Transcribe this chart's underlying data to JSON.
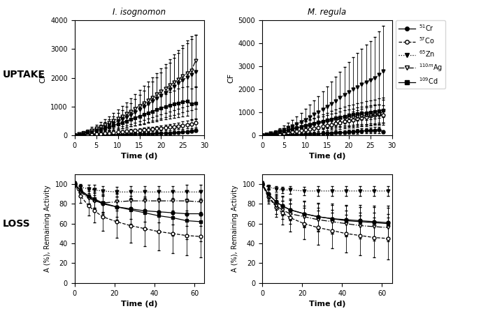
{
  "uptake_time": [
    0,
    1,
    2,
    3,
    4,
    5,
    6,
    7,
    8,
    9,
    10,
    11,
    12,
    13,
    14,
    15,
    16,
    17,
    18,
    19,
    20,
    21,
    22,
    23,
    24,
    25,
    26,
    27,
    28
  ],
  "iso_Cr_mean": [
    0,
    5,
    8,
    11,
    13,
    16,
    19,
    21,
    24,
    27,
    30,
    33,
    36,
    40,
    43,
    47,
    51,
    55,
    60,
    65,
    70,
    75,
    80,
    90,
    100,
    110,
    125,
    145,
    160
  ],
  "iso_Cr_sd": [
    0,
    2,
    3,
    4,
    5,
    6,
    7,
    8,
    9,
    10,
    11,
    12,
    13,
    14,
    15,
    16,
    17,
    18,
    20,
    22,
    24,
    26,
    28,
    30,
    33,
    36,
    40,
    45,
    50
  ],
  "iso_Co_mean": [
    0,
    10,
    20,
    30,
    40,
    50,
    60,
    72,
    84,
    96,
    110,
    124,
    138,
    152,
    166,
    178,
    190,
    205,
    220,
    235,
    250,
    265,
    280,
    300,
    325,
    350,
    375,
    400,
    430
  ],
  "iso_Co_sd": [
    0,
    6,
    10,
    14,
    18,
    22,
    26,
    30,
    34,
    38,
    42,
    46,
    50,
    55,
    60,
    65,
    70,
    75,
    80,
    85,
    90,
    95,
    100,
    108,
    118,
    128,
    138,
    148,
    158
  ],
  "iso_Zn_mean": [
    0,
    30,
    65,
    100,
    140,
    185,
    235,
    290,
    355,
    420,
    490,
    560,
    635,
    715,
    800,
    890,
    985,
    1080,
    1180,
    1280,
    1380,
    1485,
    1595,
    1700,
    1810,
    1920,
    2020,
    2110,
    2200
  ],
  "iso_Zn_sd": [
    0,
    20,
    40,
    60,
    85,
    110,
    138,
    170,
    205,
    240,
    280,
    320,
    365,
    410,
    460,
    510,
    565,
    620,
    680,
    740,
    800,
    862,
    928,
    990,
    1055,
    1120,
    1180,
    1235,
    1290
  ],
  "iso_Ag_mean": [
    0,
    40,
    85,
    130,
    180,
    235,
    295,
    360,
    430,
    505,
    580,
    660,
    745,
    835,
    930,
    1025,
    1120,
    1220,
    1320,
    1420,
    1525,
    1630,
    1740,
    1845,
    1950,
    2055,
    2160,
    2260,
    2600
  ],
  "iso_Ag_sd": [
    0,
    25,
    50,
    76,
    104,
    134,
    166,
    200,
    236,
    274,
    314,
    356,
    400,
    446,
    494,
    542,
    590,
    640,
    692,
    744,
    798,
    852,
    908,
    962,
    1018,
    1074,
    1130,
    1185,
    900
  ],
  "iso_Cd_mean": [
    0,
    30,
    60,
    92,
    126,
    165,
    205,
    248,
    294,
    342,
    392,
    443,
    496,
    550,
    606,
    662,
    720,
    775,
    832,
    888,
    942,
    994,
    1040,
    1082,
    1122,
    1158,
    1190,
    1080,
    1120
  ],
  "iso_Cd_sd": [
    0,
    15,
    28,
    42,
    57,
    74,
    92,
    111,
    131,
    152,
    174,
    197,
    221,
    246,
    272,
    297,
    323,
    348,
    373,
    397,
    420,
    441,
    460,
    477,
    493,
    507,
    519,
    540,
    560
  ],
  "mal_Cr_mean": [
    0,
    5,
    9,
    13,
    17,
    22,
    27,
    32,
    38,
    44,
    51,
    58,
    65,
    73,
    82,
    92,
    102,
    112,
    123,
    135,
    148,
    161,
    174,
    187,
    200,
    213,
    226,
    238,
    150
  ],
  "mal_Cr_sd": [
    0,
    3,
    5,
    7,
    9,
    12,
    15,
    18,
    21,
    25,
    29,
    33,
    37,
    42,
    47,
    52,
    58,
    64,
    70,
    77,
    84,
    91,
    98,
    105,
    112,
    119,
    126,
    133,
    70
  ],
  "mal_Co_mean": [
    0,
    15,
    32,
    50,
    70,
    92,
    116,
    142,
    170,
    200,
    232,
    266,
    302,
    340,
    380,
    420,
    462,
    505,
    548,
    592,
    636,
    680,
    722,
    762,
    800,
    836,
    870,
    900,
    870
  ],
  "mal_Co_sd": [
    0,
    8,
    16,
    25,
    35,
    46,
    58,
    71,
    85,
    100,
    116,
    133,
    151,
    170,
    190,
    210,
    231,
    252,
    273,
    295,
    317,
    339,
    360,
    380,
    398,
    415,
    430,
    443,
    430
  ],
  "mal_Zn_mean": [
    0,
    35,
    80,
    130,
    185,
    250,
    320,
    400,
    485,
    580,
    680,
    785,
    895,
    1010,
    1130,
    1250,
    1375,
    1500,
    1625,
    1750,
    1875,
    1990,
    2100,
    2210,
    2310,
    2400,
    2490,
    2640,
    2780
  ],
  "mal_Zn_sd": [
    0,
    25,
    55,
    88,
    126,
    170,
    218,
    272,
    330,
    395,
    464,
    536,
    612,
    691,
    774,
    860,
    950,
    1040,
    1130,
    1220,
    1310,
    1396,
    1478,
    1558,
    1634,
    1705,
    1773,
    1880,
    1990
  ],
  "mal_Ag_mean": [
    0,
    30,
    65,
    103,
    143,
    185,
    228,
    272,
    316,
    360,
    402,
    443,
    482,
    520,
    556,
    592,
    626,
    659,
    691,
    723,
    754,
    784,
    812,
    839,
    865,
    890,
    912,
    900,
    1050
  ],
  "mal_Ag_sd": [
    0,
    18,
    36,
    54,
    73,
    93,
    114,
    136,
    158,
    180,
    201,
    221,
    240,
    258,
    275,
    292,
    308,
    324,
    339,
    354,
    368,
    381,
    393,
    404,
    415,
    424,
    433,
    430,
    500
  ],
  "mal_Cd_mean": [
    0,
    30,
    63,
    100,
    140,
    182,
    227,
    273,
    321,
    370,
    419,
    468,
    517,
    566,
    614,
    660,
    705,
    748,
    789,
    828,
    865,
    899,
    930,
    958,
    983,
    1005,
    1025,
    1070,
    1095
  ],
  "mal_Cd_sd": [
    0,
    15,
    30,
    47,
    65,
    85,
    106,
    128,
    151,
    175,
    199,
    223,
    248,
    273,
    297,
    321,
    344,
    366,
    387,
    407,
    426,
    443,
    459,
    474,
    487,
    499,
    510,
    530,
    545
  ],
  "loss_time": [
    0,
    3,
    7,
    10,
    14,
    21,
    28,
    35,
    42,
    49,
    56,
    63
  ],
  "iso_loss_Cr_mean": [
    100,
    93,
    87,
    84,
    80,
    77,
    75,
    73,
    72,
    71,
    70,
    70
  ],
  "iso_loss_Cr_sd": [
    3,
    5,
    7,
    8,
    9,
    10,
    10,
    11,
    11,
    12,
    12,
    12
  ],
  "iso_loss_Co_mean": [
    100,
    88,
    78,
    73,
    67,
    62,
    58,
    55,
    52,
    50,
    48,
    47
  ],
  "iso_loss_Co_sd": [
    3,
    7,
    10,
    12,
    14,
    16,
    17,
    18,
    19,
    20,
    20,
    21
  ],
  "iso_loss_Zn_mean": [
    100,
    97,
    95,
    94,
    93,
    92,
    92,
    92,
    92,
    92,
    92,
    92
  ],
  "iso_loss_Zn_sd": [
    1,
    3,
    4,
    5,
    5,
    5,
    6,
    6,
    6,
    6,
    7,
    7
  ],
  "iso_loss_Ag_mean": [
    100,
    92,
    86,
    83,
    81,
    82,
    83,
    83,
    83,
    83,
    83,
    82
  ],
  "iso_loss_Ag_sd": [
    2,
    5,
    7,
    8,
    9,
    9,
    10,
    10,
    10,
    10,
    10,
    10
  ],
  "iso_loss_Cd_mean": [
    100,
    94,
    88,
    85,
    81,
    77,
    74,
    71,
    68,
    66,
    63,
    62
  ],
  "iso_loss_Cd_sd": [
    2,
    5,
    8,
    9,
    11,
    13,
    14,
    16,
    17,
    18,
    19,
    20
  ],
  "mal_loss_Cr_mean": [
    100,
    90,
    82,
    78,
    74,
    70,
    67,
    65,
    64,
    63,
    62,
    61
  ],
  "mal_loss_Cr_sd": [
    3,
    6,
    8,
    10,
    11,
    13,
    14,
    15,
    15,
    16,
    16,
    17
  ],
  "mal_loss_Co_mean": [
    100,
    87,
    77,
    71,
    66,
    60,
    56,
    53,
    50,
    48,
    46,
    45
  ],
  "mal_loss_Co_sd": [
    3,
    7,
    10,
    12,
    14,
    16,
    17,
    18,
    19,
    20,
    20,
    21
  ],
  "mal_loss_Zn_mean": [
    100,
    97,
    95,
    94,
    94,
    93,
    93,
    93,
    93,
    93,
    93,
    93
  ],
  "mal_loss_Zn_sd": [
    1,
    2,
    3,
    3,
    4,
    4,
    5,
    5,
    5,
    5,
    5,
    5
  ],
  "mal_loss_Ag_mean": [
    100,
    88,
    78,
    74,
    70,
    67,
    64,
    62,
    60,
    58,
    57,
    56
  ],
  "mal_loss_Ag_sd": [
    3,
    6,
    8,
    9,
    10,
    11,
    12,
    12,
    13,
    13,
    14,
    14
  ],
  "mal_loss_Cd_mean": [
    100,
    90,
    82,
    78,
    74,
    70,
    67,
    65,
    63,
    62,
    61,
    60
  ],
  "mal_loss_Cd_sd": [
    2,
    5,
    7,
    9,
    10,
    12,
    13,
    14,
    15,
    15,
    16,
    16
  ],
  "iso_title": "I. isognomon",
  "mal_title": "M. regula",
  "uptake_ylabel": "CF",
  "loss_ylabel": "A (%), Remaining Activity",
  "uptake_xlabel": "Time (d)",
  "loss_xlabel": "Time (d)",
  "label_uptake": "UPTAKE",
  "label_loss": "LOSS"
}
